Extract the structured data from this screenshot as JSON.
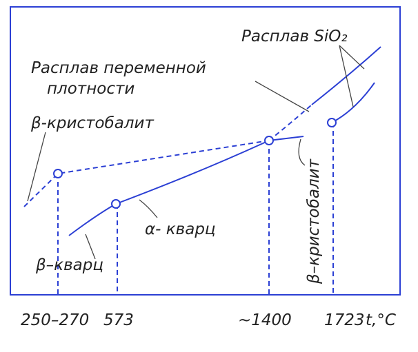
{
  "labels": {
    "melt_sio2": "Расплав SiO₂",
    "melt_variable_1": "Расплав переменной",
    "melt_variable_2": "плотности",
    "beta_cristobalite_left": "β-кристобалит",
    "alpha_quartz": "α- кварц",
    "beta_quartz": "β–кварц",
    "beta_cristobalite_right": "β–кристобалит"
  },
  "axis": {
    "t1": "250–270",
    "t2": "573",
    "t3": "~1400",
    "t4": "1723",
    "unit": "t,°C"
  }
}
